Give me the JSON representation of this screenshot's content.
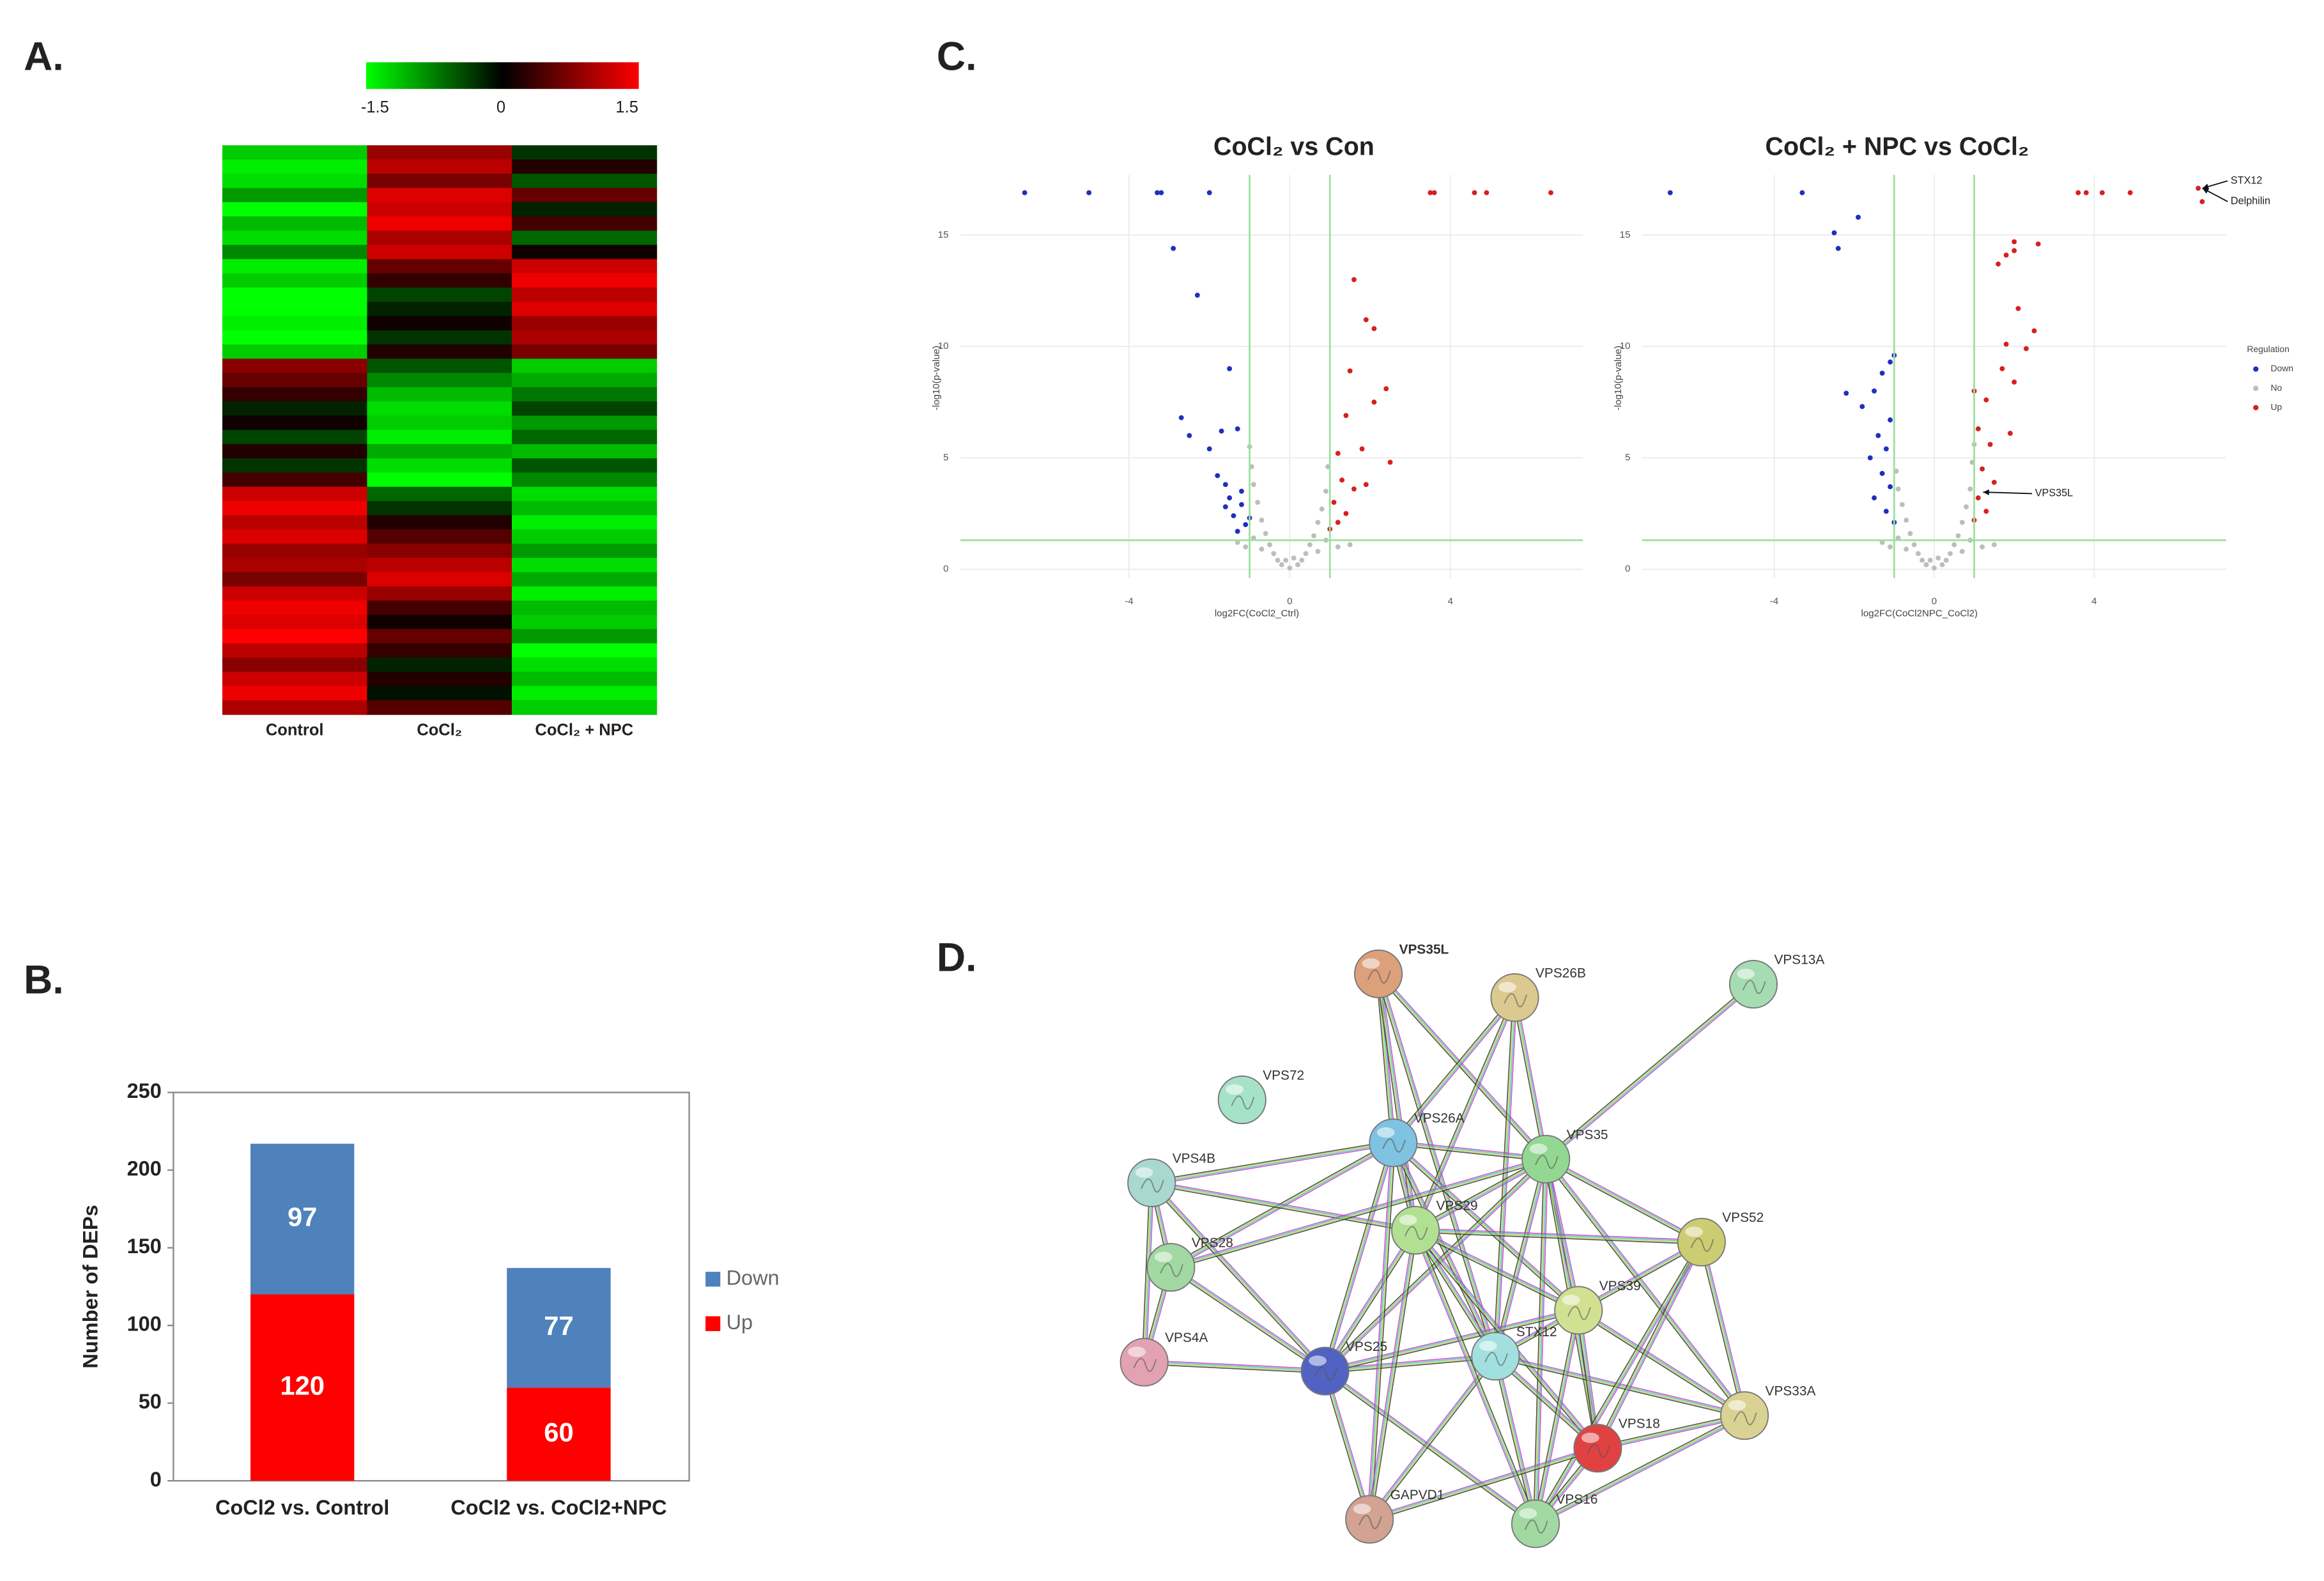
{
  "chart_data": [
    {
      "type": "heatmap",
      "panel": "A.",
      "columns": [
        "Control",
        "CoCl₂",
        "CoCl₂ + NPC"
      ],
      "colorbar": {
        "lim": [
          -1.5,
          1.5
        ],
        "ticks": [
          -1.5,
          0,
          1.5
        ],
        "colors": [
          "#00ff00",
          "#000000",
          "#ff0000"
        ]
      },
      "values": [
        [
          -1.2,
          0.9,
          -0.3
        ],
        [
          -1.4,
          1.1,
          0.2
        ],
        [
          -1.3,
          0.7,
          -0.5
        ],
        [
          -0.9,
          1.3,
          0.6
        ],
        [
          -1.5,
          1.2,
          -0.2
        ],
        [
          -1.1,
          1.4,
          0.4
        ],
        [
          -1.3,
          1.0,
          -0.6
        ],
        [
          -0.8,
          1.2,
          0.1
        ],
        [
          -1.4,
          0.6,
          1.2
        ],
        [
          -1.2,
          0.3,
          1.4
        ],
        [
          -1.5,
          -0.4,
          1.1
        ],
        [
          -1.5,
          -0.2,
          1.3
        ],
        [
          -1.4,
          0.1,
          0.9
        ],
        [
          -1.5,
          -0.3,
          1.0
        ],
        [
          -1.2,
          0.2,
          0.7
        ],
        [
          0.8,
          -0.5,
          -1.2
        ],
        [
          0.6,
          -0.8,
          -1.0
        ],
        [
          0.3,
          -1.1,
          -0.7
        ],
        [
          -0.2,
          -1.3,
          -0.4
        ],
        [
          0.1,
          -1.2,
          -0.9
        ],
        [
          -0.4,
          -1.4,
          -0.6
        ],
        [
          0.2,
          -1.0,
          -1.1
        ],
        [
          -0.3,
          -1.3,
          -0.5
        ],
        [
          0.4,
          -1.5,
          -0.8
        ],
        [
          1.2,
          -0.6,
          -1.3
        ],
        [
          1.4,
          -0.3,
          -1.1
        ],
        [
          1.1,
          0.2,
          -1.4
        ],
        [
          1.3,
          0.5,
          -1.2
        ],
        [
          0.9,
          0.8,
          -0.9
        ],
        [
          1.0,
          1.1,
          -1.3
        ],
        [
          0.7,
          1.3,
          -1.0
        ],
        [
          1.2,
          0.9,
          -1.4
        ],
        [
          1.4,
          0.4,
          -1.1
        ],
        [
          1.3,
          0.1,
          -1.2
        ],
        [
          1.5,
          0.6,
          -0.9
        ],
        [
          1.1,
          0.3,
          -1.5
        ],
        [
          0.8,
          -0.2,
          -1.3
        ],
        [
          1.2,
          0.2,
          -1.1
        ],
        [
          1.4,
          -0.1,
          -1.4
        ],
        [
          1.0,
          0.5,
          -1.2
        ]
      ]
    },
    {
      "type": "stacked_bar",
      "panel": "B.",
      "y_label": "Number of DEPs",
      "categories": [
        "CoCl2 vs. Control",
        "CoCl2 vs. CoCl2+NPC"
      ],
      "series": [
        {
          "name": "Up",
          "color": "#ff0000",
          "values": [
            120,
            60
          ]
        },
        {
          "name": "Down",
          "color": "#4f81bd",
          "values": [
            97,
            77
          ]
        }
      ],
      "ylim": [
        0,
        250
      ],
      "yticks": [
        0,
        50,
        100,
        150,
        200,
        250
      ],
      "legend": "right"
    },
    {
      "type": "volcano",
      "panel": "C.",
      "title": "CoCl₂ vs Con",
      "x_label": "log2FC(CoCl2_Ctrl)",
      "y_label": "-log10(p-value)",
      "xlim": [
        -8.2,
        7.3
      ],
      "ylim": [
        -0.4,
        17.7
      ],
      "xticks": [
        -4,
        0,
        4
      ],
      "yticks": [
        0,
        5,
        10,
        15
      ],
      "vlines": [
        -1,
        1
      ],
      "hline": 1.3,
      "grid": true,
      "series": [
        {
          "name": "Down",
          "color": "#1f2fbf",
          "x": [
            -6.6,
            -5.0,
            -3.3,
            -3.2,
            -2.0,
            -2.9,
            -2.3,
            -1.5,
            -2.7,
            -2.5,
            -1.7,
            -1.3,
            -2.0,
            -1.8,
            -1.6,
            -1.5,
            -1.2,
            -1.4,
            -1.1,
            -1.3,
            -1.0,
            -1.2,
            -1.6
          ],
          "values": [
            16.9,
            16.9,
            16.9,
            16.9,
            16.9,
            14.4,
            12.3,
            9.0,
            6.8,
            6.0,
            6.2,
            6.3,
            5.4,
            4.2,
            3.8,
            3.2,
            2.9,
            2.4,
            2.0,
            1.7,
            2.3,
            3.5,
            2.8
          ]
        },
        {
          "name": "No",
          "color": "#bdbdbd",
          "x": [
            -0.9,
            -0.8,
            -0.7,
            -0.6,
            -0.5,
            -0.4,
            -0.3,
            -0.2,
            0,
            0.2,
            0.3,
            0.4,
            0.5,
            0.6,
            0.7,
            0.8,
            0.9,
            0.95,
            -0.95,
            -1.1,
            -1.3,
            1.2,
            1.5,
            -0.7,
            0.7,
            -0.9,
            0.9,
            0.1,
            -0.1,
            -1.0
          ],
          "values": [
            3.8,
            3.0,
            2.2,
            1.6,
            1.1,
            0.7,
            0.4,
            0.2,
            0.05,
            0.2,
            0.4,
            0.7,
            1.1,
            1.5,
            2.1,
            2.7,
            3.5,
            4.6,
            4.6,
            1.0,
            1.2,
            1.0,
            1.1,
            0.9,
            0.8,
            1.4,
            1.3,
            0.5,
            0.4,
            5.5
          ]
        },
        {
          "name": "Up",
          "color": "#d62020",
          "x": [
            3.5,
            3.6,
            4.6,
            4.9,
            6.5,
            1.6,
            1.9,
            2.1,
            1.5,
            2.4,
            2.1,
            1.4,
            1.2,
            1.8,
            2.5,
            1.3,
            1.6,
            1.1,
            1.4,
            1.2,
            1.9,
            1.0
          ],
          "values": [
            16.9,
            16.9,
            16.9,
            16.9,
            16.9,
            13.0,
            11.2,
            10.8,
            8.9,
            8.1,
            7.5,
            6.9,
            5.2,
            5.4,
            4.8,
            4.0,
            3.6,
            3.0,
            2.5,
            2.1,
            3.8,
            1.8
          ]
        }
      ]
    },
    {
      "type": "volcano",
      "title": "CoCl₂ + NPC vs CoCl₂",
      "x_label": "log2FC(CoCl2NPC_CoCl2)",
      "y_label": "-log10(p-value)",
      "xlim": [
        -7.3,
        7.3
      ],
      "ylim": [
        -0.4,
        17.7
      ],
      "xticks": [
        -4,
        0,
        4
      ],
      "yticks": [
        0,
        5,
        10,
        15
      ],
      "vlines": [
        -1,
        1
      ],
      "hline": 1.3,
      "grid": true,
      "legend_title": "Regulation",
      "legend": "right",
      "annotations": [
        "STX12",
        "Delphilin",
        "VPS35L"
      ],
      "series": [
        {
          "name": "Down",
          "color": "#1f2fbf",
          "x": [
            -6.6,
            -3.3,
            -1.9,
            -2.5,
            -2.4,
            -1.0,
            -1.1,
            -1.3,
            -2.2,
            -1.5,
            -1.8,
            -1.1,
            -1.4,
            -1.2,
            -1.6,
            -1.3,
            -1.1,
            -1.5,
            -1.2,
            -1.0
          ],
          "values": [
            16.9,
            16.9,
            15.8,
            15.1,
            14.4,
            9.6,
            9.3,
            8.8,
            7.9,
            8.0,
            7.3,
            6.7,
            6.0,
            5.4,
            5.0,
            4.3,
            3.7,
            3.2,
            2.6,
            2.1
          ]
        },
        {
          "name": "No",
          "color": "#bdbdbd",
          "x": [
            -0.9,
            -0.8,
            -0.7,
            -0.6,
            -0.5,
            -0.4,
            -0.3,
            -0.2,
            0,
            0.2,
            0.3,
            0.4,
            0.5,
            0.6,
            0.7,
            0.8,
            0.9,
            0.95,
            -0.95,
            -1.1,
            -1.3,
            1.2,
            1.5,
            -0.7,
            0.7,
            -0.9,
            0.9,
            0.1,
            -0.1,
            1.0
          ],
          "values": [
            3.6,
            2.9,
            2.2,
            1.6,
            1.1,
            0.7,
            0.4,
            0.2,
            0.05,
            0.2,
            0.4,
            0.7,
            1.1,
            1.5,
            2.1,
            2.8,
            3.6,
            4.8,
            4.4,
            1.0,
            1.2,
            1.0,
            1.1,
            0.9,
            0.8,
            1.4,
            1.3,
            0.5,
            0.4,
            5.6
          ]
        },
        {
          "name": "Up",
          "color": "#d62020",
          "x": [
            3.6,
            3.8,
            4.2,
            4.9,
            6.6,
            6.7,
            2.0,
            2.0,
            1.8,
            2.6,
            1.6,
            2.1,
            2.5,
            1.8,
            2.3,
            1.7,
            2.0,
            1.3,
            1.0,
            1.1,
            1.4,
            1.9,
            1.2,
            1.5,
            1.1,
            1.3,
            1.0
          ],
          "values": [
            16.9,
            16.9,
            16.9,
            16.9,
            17.1,
            16.5,
            14.7,
            14.3,
            14.1,
            14.6,
            13.7,
            11.7,
            10.7,
            10.1,
            9.9,
            9.0,
            8.4,
            7.6,
            8.0,
            6.3,
            5.6,
            6.1,
            4.5,
            3.9,
            3.2,
            2.6,
            2.2
          ]
        }
      ]
    }
  ],
  "network": {
    "panel": "D.",
    "nodes": [
      {
        "label": "VPS35L",
        "color": "#dca07a"
      },
      {
        "label": "VPS26B",
        "color": "#dcc98f"
      },
      {
        "label": "VPS13A",
        "color": "#a6dcb2"
      },
      {
        "label": "VPS72",
        "color": "#a6e2c8"
      },
      {
        "label": "VPS26A",
        "color": "#7fc2e2"
      },
      {
        "label": "VPS35",
        "color": "#92d892"
      },
      {
        "label": "VPS4B",
        "color": "#a8d8d0"
      },
      {
        "label": "VPS29",
        "color": "#b2e092"
      },
      {
        "label": "VPS52",
        "color": "#cccc72"
      },
      {
        "label": "VPS28",
        "color": "#a2d8a2"
      },
      {
        "label": "VPS39",
        "color": "#d2e092"
      },
      {
        "label": "STX12",
        "color": "#a2e0e0"
      },
      {
        "label": "VPS25",
        "color": "#5262c2"
      },
      {
        "label": "VPS4A",
        "color": "#e2a2b2"
      },
      {
        "label": "VPS33A",
        "color": "#dad292"
      },
      {
        "label": "VPS18",
        "color": "#e04242"
      },
      {
        "label": "GAPVD1",
        "color": "#d2a292"
      },
      {
        "label": "VPS16",
        "color": "#a2d8a2"
      }
    ]
  }
}
